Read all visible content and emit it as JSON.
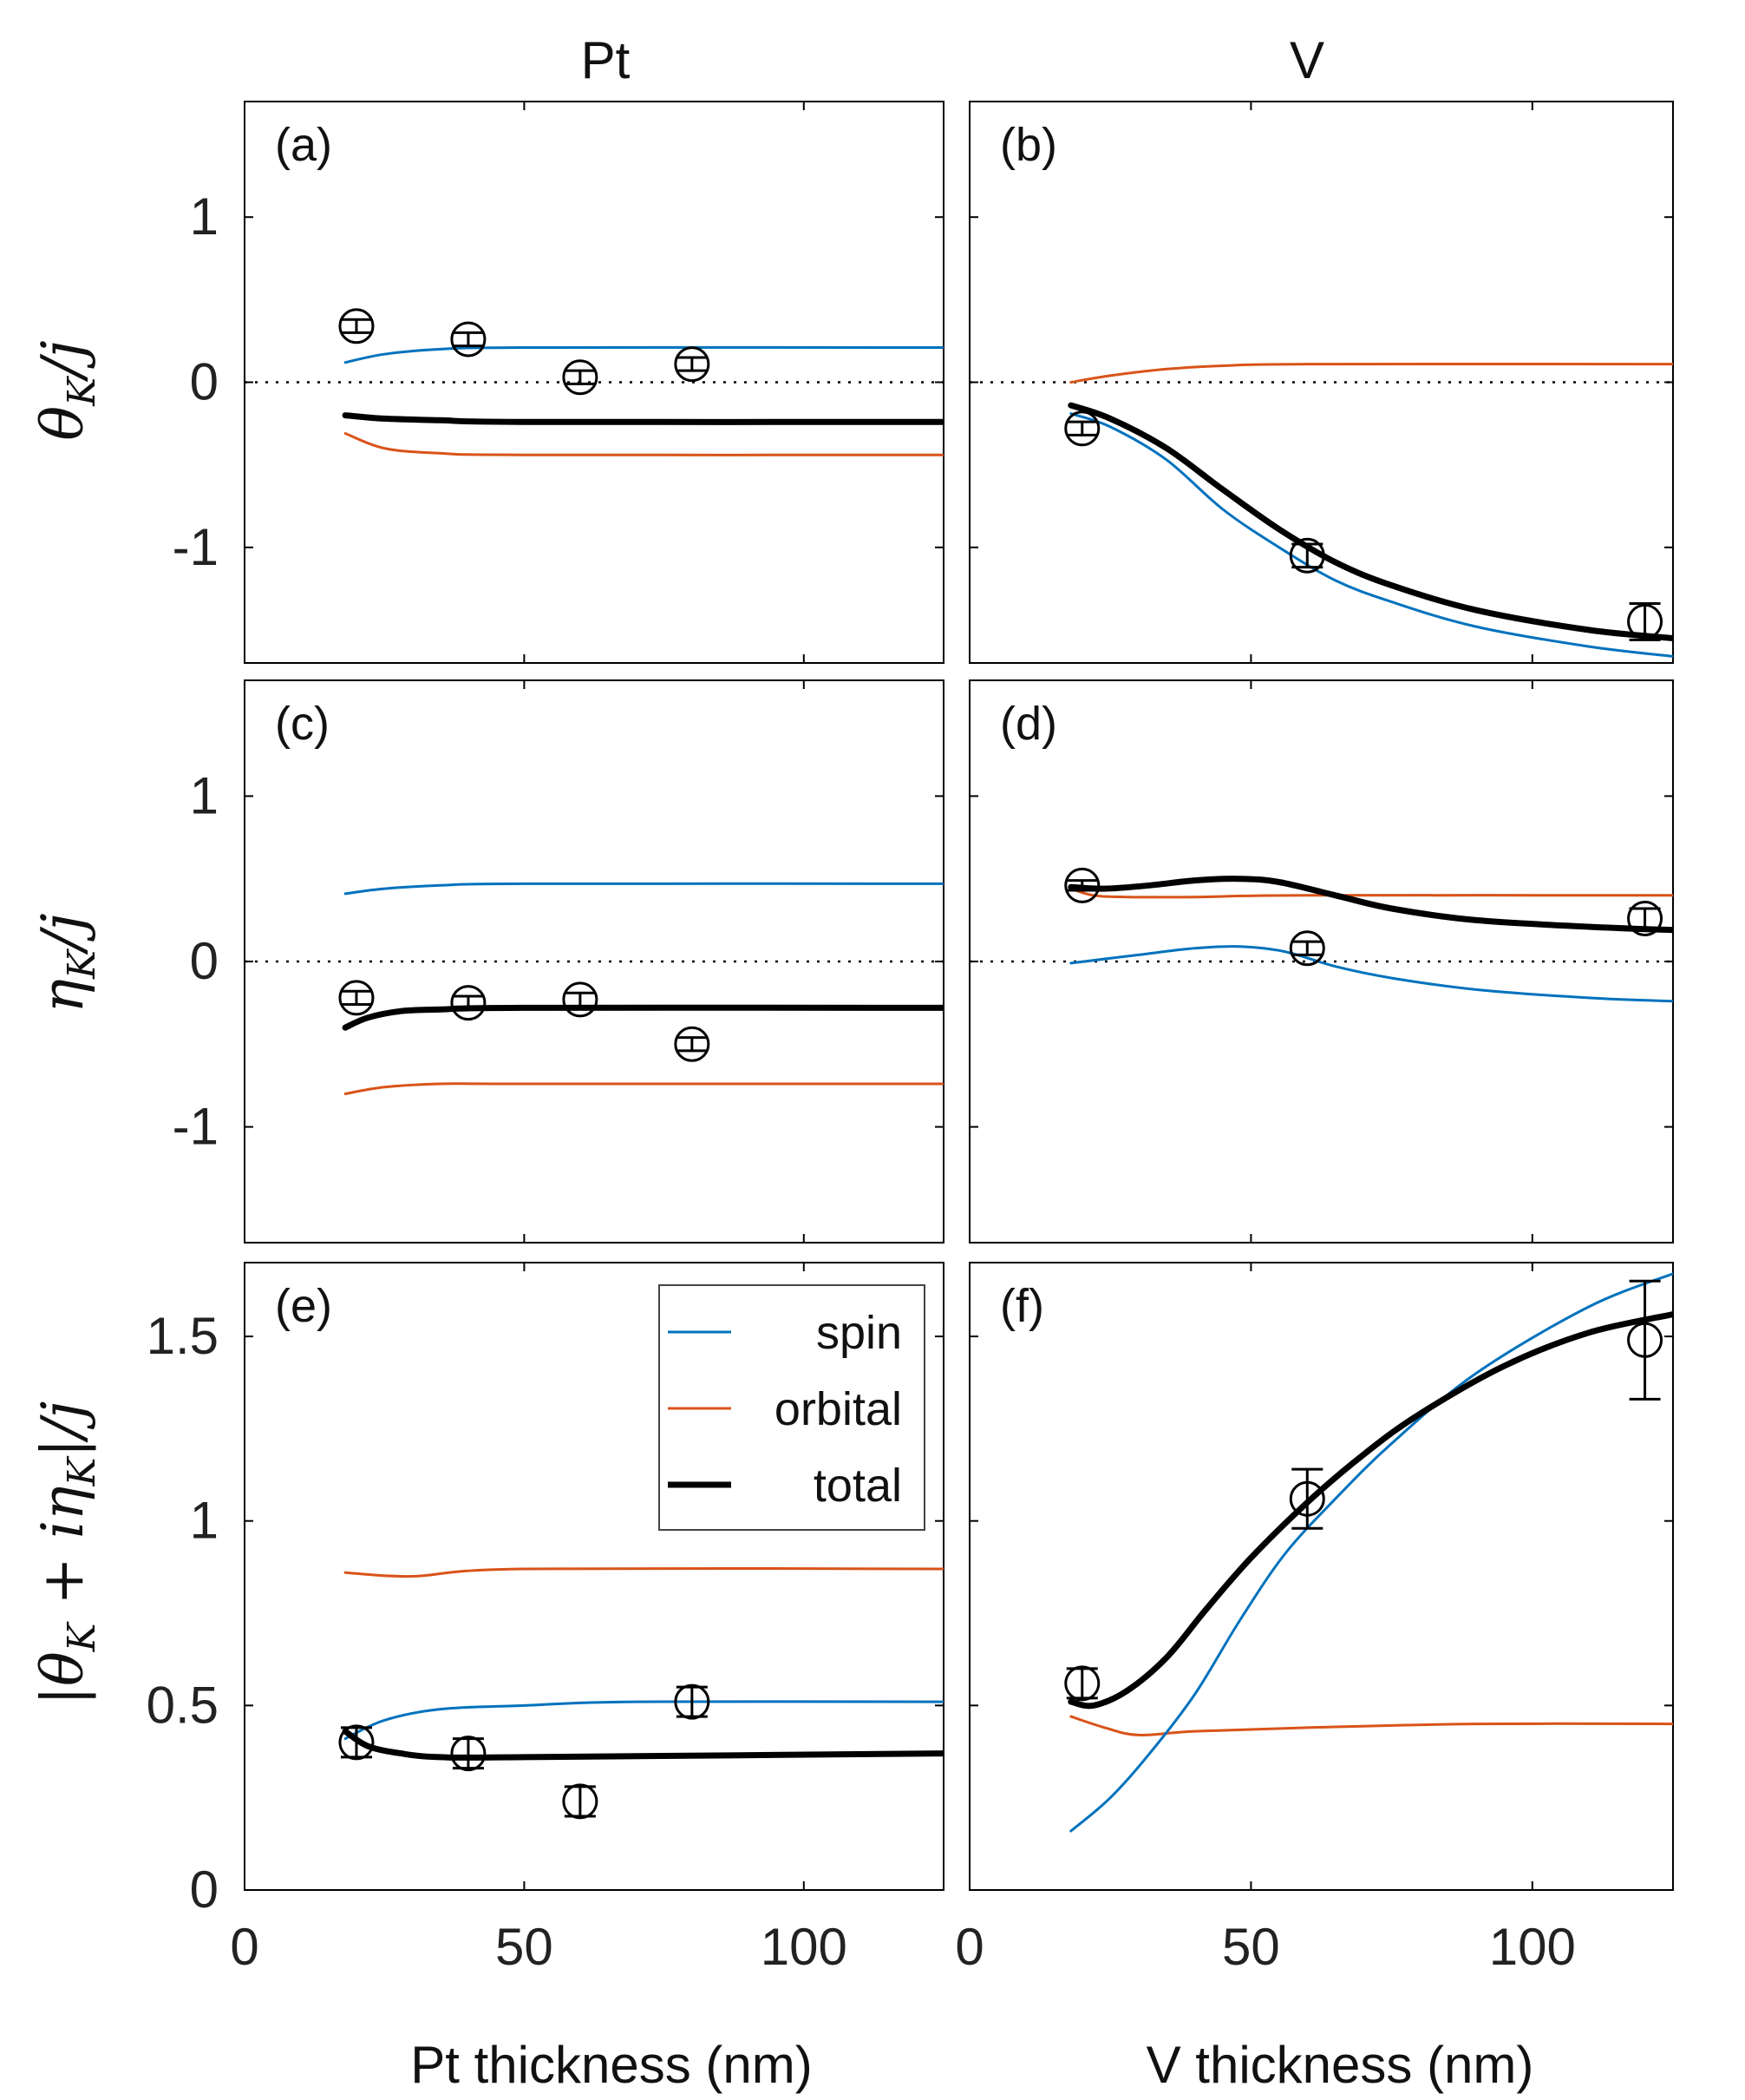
{
  "colors": {
    "spin": "#0072BD",
    "orbital": "#D95319",
    "total": "#000000"
  },
  "column_titles": [
    "Pt",
    "V"
  ],
  "x_labels": [
    "Pt thickness (nm)",
    "V thickness (nm)"
  ],
  "y_labels": [
    "θ_K / j",
    "η_K / j",
    "|θ_K + iη_K| / j"
  ],
  "legend": [
    "spin",
    "orbital",
    "total"
  ],
  "chart_data": [
    {
      "panel": "(a)",
      "type": "line",
      "xlim": [
        0,
        125
      ],
      "ylim": [
        -1.7,
        1.7
      ],
      "xticks": [
        0,
        50,
        100
      ],
      "yticks": [
        1,
        0,
        -1
      ],
      "yticklabels": [
        "1",
        "0",
        "-1"
      ],
      "zero_line": true,
      "series": [
        {
          "name": "spin",
          "x": [
            18,
            25,
            35,
            50,
            125
          ],
          "y": [
            0.12,
            0.17,
            0.2,
            0.21,
            0.21
          ]
        },
        {
          "name": "orbital",
          "x": [
            18,
            25,
            35,
            50,
            125
          ],
          "y": [
            -0.31,
            -0.4,
            -0.43,
            -0.44,
            -0.44
          ]
        },
        {
          "name": "total",
          "x": [
            18,
            25,
            35,
            50,
            125
          ],
          "y": [
            -0.2,
            -0.22,
            -0.23,
            -0.24,
            -0.24
          ]
        }
      ],
      "points": [
        {
          "x": 20,
          "y": 0.34,
          "err": 0.04
        },
        {
          "x": 40,
          "y": 0.26,
          "err": 0.04
        },
        {
          "x": 60,
          "y": 0.03,
          "err": 0.04
        },
        {
          "x": 80,
          "y": 0.11,
          "err": 0.04
        }
      ]
    },
    {
      "panel": "(b)",
      "type": "line",
      "xlim": [
        0,
        125
      ],
      "ylim": [
        -1.7,
        1.7
      ],
      "xticks": [
        0,
        50,
        100
      ],
      "yticks": [
        1,
        0,
        -1
      ],
      "yticklabels": [
        "",
        "",
        ""
      ],
      "zero_line": true,
      "series": [
        {
          "name": "spin",
          "x": [
            18,
            25,
            35,
            45,
            55,
            65,
            75,
            90,
            110,
            125
          ],
          "y": [
            -0.19,
            -0.27,
            -0.47,
            -0.77,
            -1.0,
            -1.2,
            -1.33,
            -1.48,
            -1.6,
            -1.66
          ]
        },
        {
          "name": "orbital",
          "x": [
            18,
            25,
            35,
            45,
            60,
            125
          ],
          "y": [
            0.0,
            0.04,
            0.08,
            0.1,
            0.11,
            0.11
          ]
        },
        {
          "name": "total",
          "x": [
            18,
            25,
            35,
            45,
            55,
            65,
            75,
            90,
            110,
            125
          ],
          "y": [
            -0.14,
            -0.22,
            -0.4,
            -0.65,
            -0.89,
            -1.09,
            -1.23,
            -1.38,
            -1.5,
            -1.55
          ]
        }
      ],
      "points": [
        {
          "x": 20,
          "y": -0.28,
          "err": 0.04
        },
        {
          "x": 60,
          "y": -1.05,
          "err": 0.07
        },
        {
          "x": 120,
          "y": -1.45,
          "err": 0.11
        }
      ]
    },
    {
      "panel": "(c)",
      "type": "line",
      "xlim": [
        0,
        125
      ],
      "ylim": [
        -1.7,
        1.7
      ],
      "xticks": [
        0,
        50,
        100
      ],
      "yticks": [
        1,
        0,
        -1
      ],
      "yticklabels": [
        "1",
        "0",
        "-1"
      ],
      "zero_line": true,
      "series": [
        {
          "name": "spin",
          "x": [
            18,
            25,
            35,
            50,
            125
          ],
          "y": [
            0.41,
            0.44,
            0.46,
            0.47,
            0.47
          ]
        },
        {
          "name": "orbital",
          "x": [
            18,
            25,
            35,
            50,
            125
          ],
          "y": [
            -0.8,
            -0.76,
            -0.74,
            -0.74,
            -0.74
          ]
        },
        {
          "name": "total",
          "x": [
            18,
            22,
            28,
            35,
            50,
            125
          ],
          "y": [
            -0.4,
            -0.34,
            -0.3,
            -0.29,
            -0.28,
            -0.28
          ]
        }
      ],
      "points": [
        {
          "x": 20,
          "y": -0.22,
          "err": 0.04
        },
        {
          "x": 40,
          "y": -0.25,
          "err": 0.04
        },
        {
          "x": 60,
          "y": -0.23,
          "err": 0.04
        },
        {
          "x": 80,
          "y": -0.5,
          "err": 0.04
        }
      ]
    },
    {
      "panel": "(d)",
      "type": "line",
      "xlim": [
        0,
        125
      ],
      "ylim": [
        -1.7,
        1.7
      ],
      "xticks": [
        0,
        50,
        100
      ],
      "yticks": [
        1,
        0,
        -1
      ],
      "yticklabels": [
        "",
        "",
        ""
      ],
      "zero_line": true,
      "series": [
        {
          "name": "spin",
          "x": [
            18,
            30,
            40,
            48,
            56,
            65,
            75,
            90,
            110,
            125
          ],
          "y": [
            -0.01,
            0.04,
            0.08,
            0.09,
            0.06,
            -0.03,
            -0.1,
            -0.17,
            -0.22,
            -0.24
          ]
        },
        {
          "name": "orbital",
          "x": [
            18,
            22,
            28,
            40,
            60,
            125
          ],
          "y": [
            0.44,
            0.4,
            0.39,
            0.39,
            0.4,
            0.4
          ]
        },
        {
          "name": "total",
          "x": [
            18,
            24,
            32,
            40,
            48,
            55,
            65,
            75,
            90,
            110,
            125
          ],
          "y": [
            0.45,
            0.44,
            0.46,
            0.49,
            0.5,
            0.48,
            0.4,
            0.32,
            0.25,
            0.21,
            0.19
          ]
        }
      ],
      "points": [
        {
          "x": 20,
          "y": 0.46,
          "err": 0.03
        },
        {
          "x": 60,
          "y": 0.08,
          "err": 0.04
        },
        {
          "x": 120,
          "y": 0.26,
          "err": 0.06
        }
      ]
    },
    {
      "panel": "(e)",
      "type": "line",
      "xlim": [
        0,
        125
      ],
      "ylim": [
        0,
        1.7
      ],
      "xticks": [
        0,
        50,
        100
      ],
      "yticks": [
        0,
        0.5,
        1,
        1.5
      ],
      "yticklabels": [
        "0",
        "0.5",
        "1",
        "1.5"
      ],
      "zero_line": false,
      "series": [
        {
          "name": "spin",
          "x": [
            18,
            25,
            35,
            50,
            70,
            125
          ],
          "y": [
            0.41,
            0.46,
            0.49,
            0.5,
            0.51,
            0.51
          ]
        },
        {
          "name": "orbital",
          "x": [
            18,
            30,
            50,
            125
          ],
          "y": [
            0.86,
            0.85,
            0.87,
            0.87
          ]
        },
        {
          "name": "total",
          "x": [
            18,
            22,
            28,
            35,
            50,
            125
          ],
          "y": [
            0.43,
            0.39,
            0.37,
            0.36,
            0.36,
            0.37
          ]
        }
      ],
      "points": [
        {
          "x": 20,
          "y": 0.4,
          "err": 0.04
        },
        {
          "x": 40,
          "y": 0.37,
          "err": 0.04
        },
        {
          "x": 60,
          "y": 0.24,
          "err": 0.04
        },
        {
          "x": 80,
          "y": 0.51,
          "err": 0.04
        }
      ]
    },
    {
      "panel": "(f)",
      "type": "line",
      "xlim": [
        0,
        125
      ],
      "ylim": [
        0,
        1.7
      ],
      "xticks": [
        0,
        50,
        100
      ],
      "yticks": [
        0,
        0.5,
        1,
        1.5
      ],
      "yticklabels": [
        "",
        "",
        "",
        ""
      ],
      "zero_line": false,
      "series": [
        {
          "name": "spin",
          "x": [
            18,
            25,
            32,
            40,
            48,
            56,
            65,
            75,
            90,
            110,
            125
          ],
          "y": [
            0.16,
            0.25,
            0.37,
            0.53,
            0.73,
            0.91,
            1.06,
            1.21,
            1.4,
            1.58,
            1.67
          ]
        },
        {
          "name": "orbital",
          "x": [
            18,
            24,
            30,
            40,
            60,
            90,
            125
          ],
          "y": [
            0.47,
            0.44,
            0.42,
            0.43,
            0.44,
            0.45,
            0.45
          ]
        },
        {
          "name": "total",
          "x": [
            18,
            22,
            28,
            35,
            42,
            50,
            60,
            70,
            80,
            95,
            110,
            125
          ],
          "y": [
            0.51,
            0.5,
            0.54,
            0.63,
            0.76,
            0.9,
            1.05,
            1.18,
            1.29,
            1.42,
            1.51,
            1.56
          ]
        }
      ],
      "points": [
        {
          "x": 20,
          "y": 0.56,
          "err": 0.04
        },
        {
          "x": 60,
          "y": 1.06,
          "err": 0.08
        },
        {
          "x": 120,
          "y": 1.49,
          "err": 0.16
        }
      ]
    }
  ]
}
